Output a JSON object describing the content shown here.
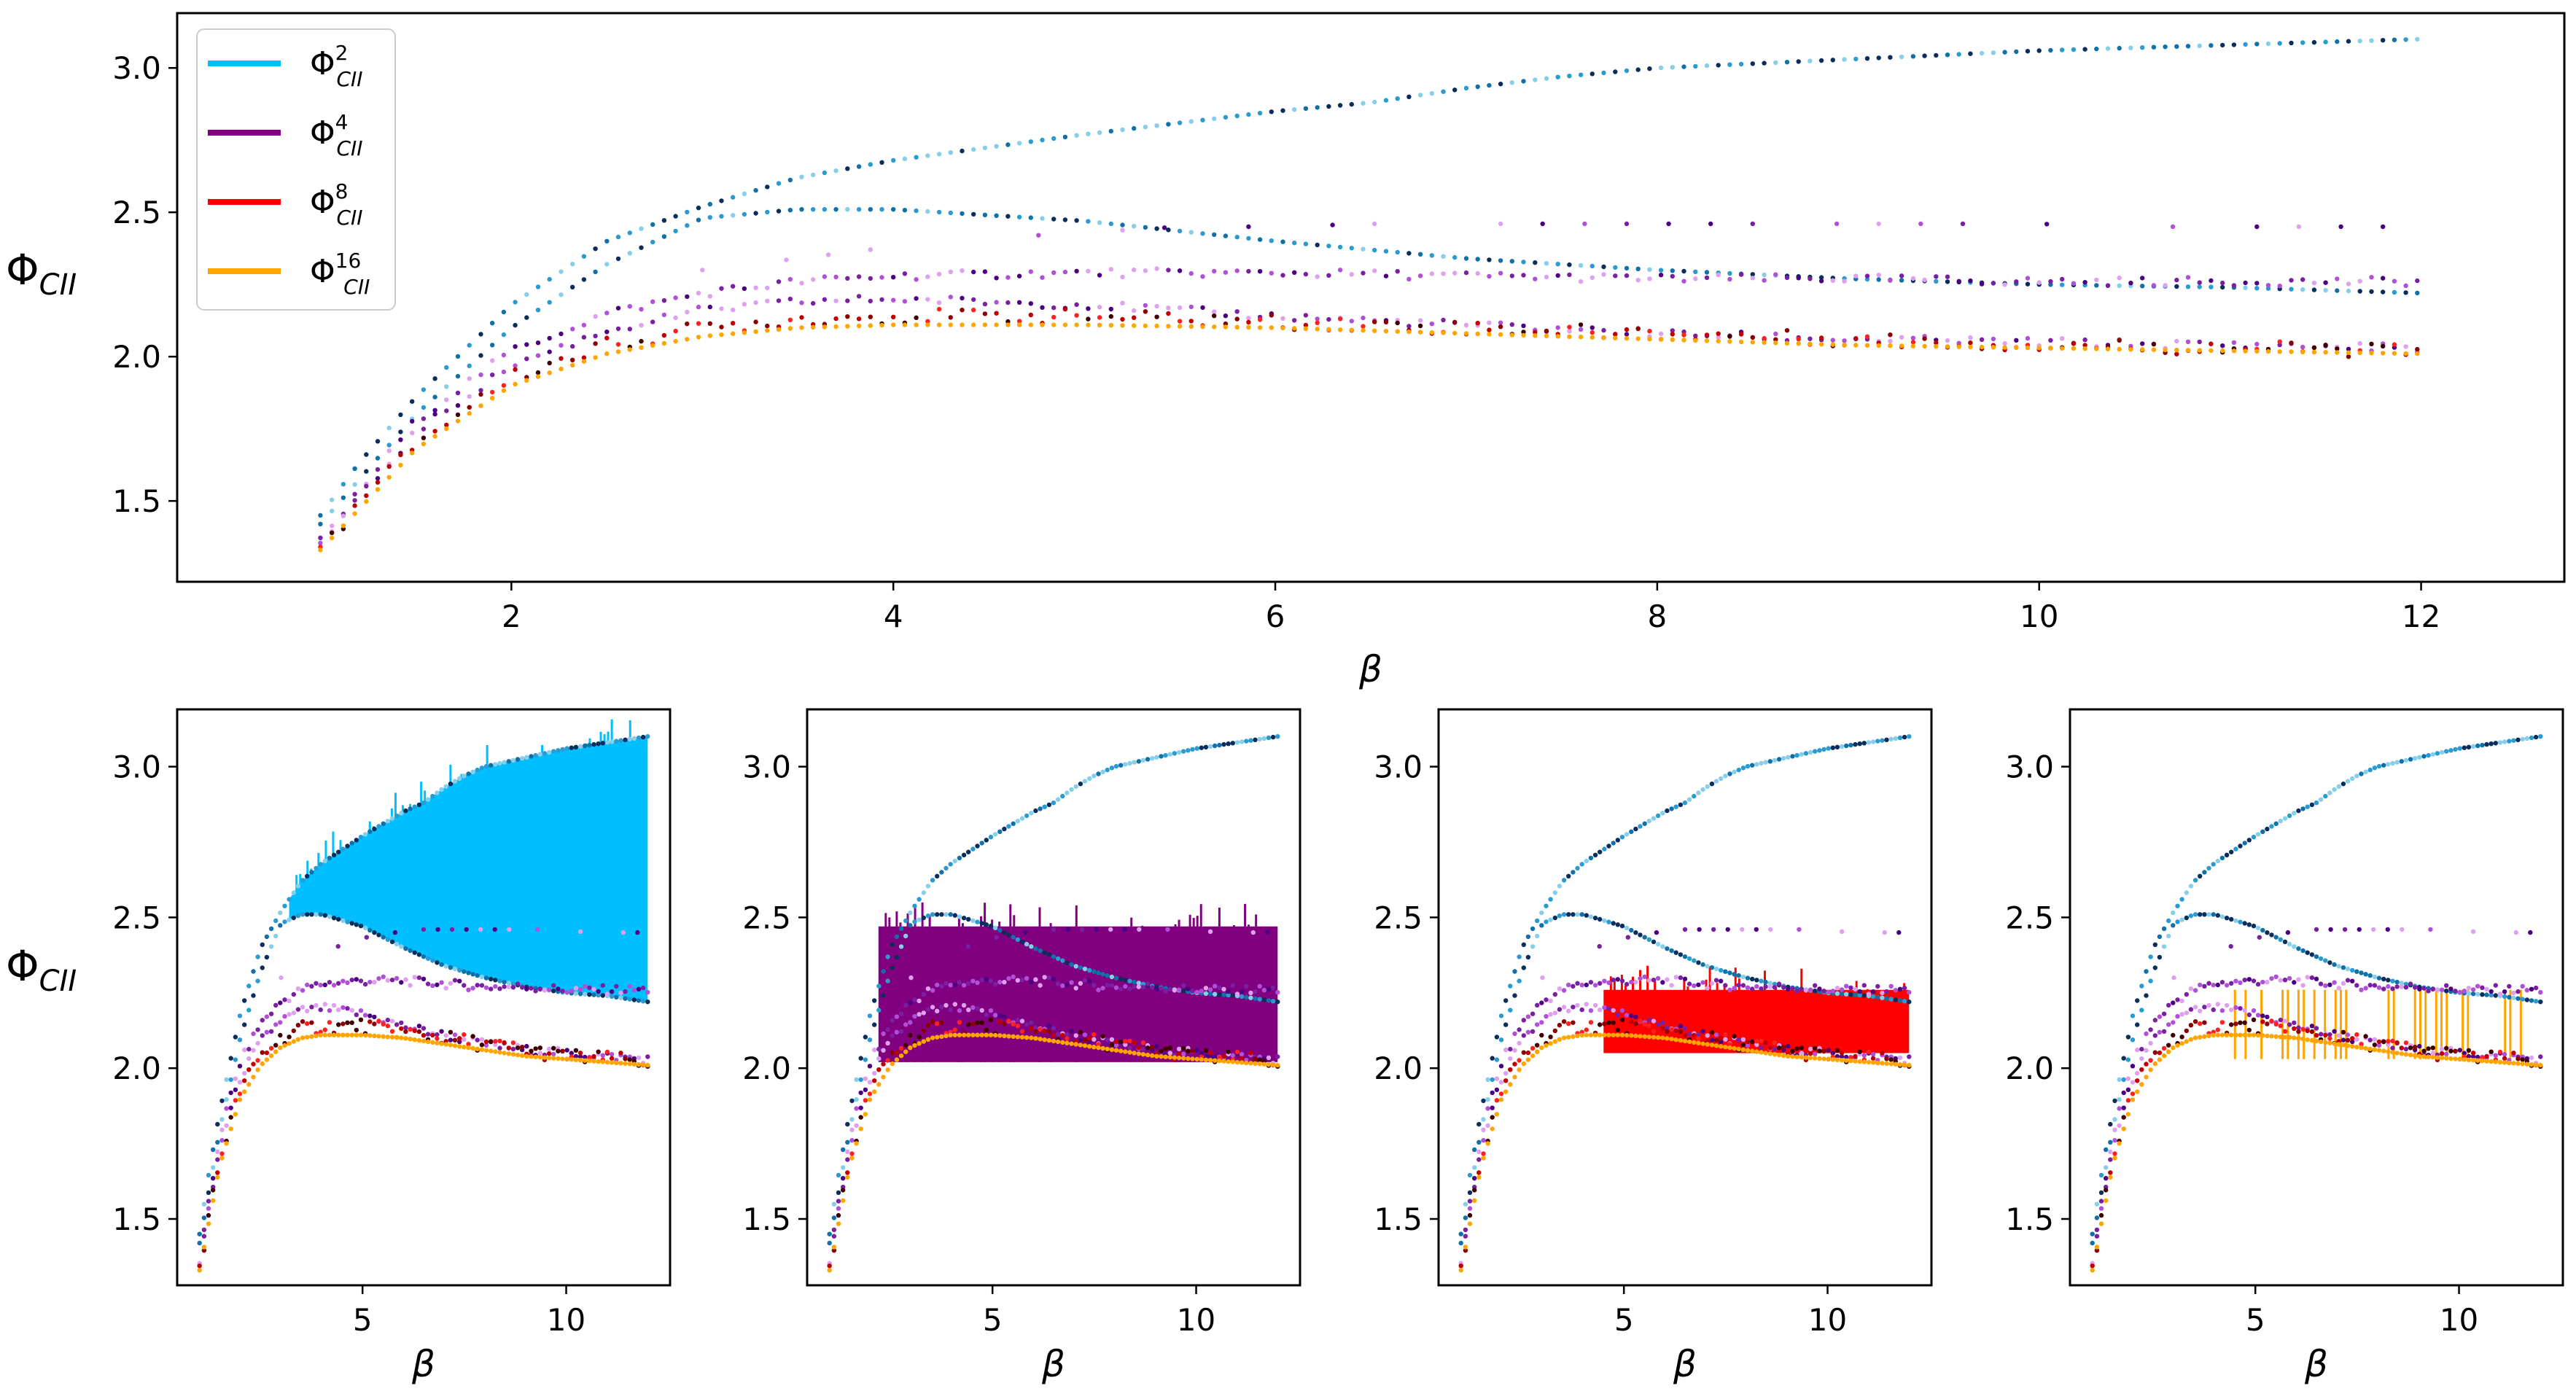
{
  "colors": {
    "phi2": "#00bfff",
    "phi4": "#800080",
    "phi8": "#ff0000",
    "phi16": "#ffa500",
    "phi2_shades": [
      "#87ceeb",
      "#2a9bd0",
      "#1070a8",
      "#0a2e5c"
    ],
    "phi4_shades": [
      "#4b0082",
      "#7a1fa2",
      "#b04fd8",
      "#e0a0f0"
    ],
    "phi8_shades": [
      "#8b0000",
      "#c00000",
      "#ff2020",
      "#400000"
    ]
  },
  "chart_data": [
    {
      "type": "scatter",
      "panel": "top",
      "xlabel": "β",
      "ylabel": "Φ",
      "ylabel_sub": "CII",
      "xlim": [
        0.25,
        12.75
      ],
      "ylim": [
        1.22,
        3.19
      ],
      "xticks": [
        2,
        4,
        6,
        8,
        10,
        12
      ],
      "yticks": [
        1.5,
        2.0,
        2.5,
        3.0
      ],
      "xtick_labels": [
        "2",
        "4",
        "6",
        "8",
        "10",
        "12"
      ],
      "ytick_labels": [
        "1.5",
        "2.0",
        "2.5",
        "3.0"
      ],
      "legend_position": "upper-left",
      "legend": [
        {
          "series": "phi2",
          "base": "Φ",
          "sup": "2",
          "sub": "CII"
        },
        {
          "series": "phi4",
          "base": "Φ",
          "sup": "4",
          "sub": "CII"
        },
        {
          "series": "phi8",
          "base": "Φ",
          "sup": "8",
          "sub": "CII"
        },
        {
          "series": "phi16",
          "base": "Φ",
          "sup": "16",
          "sub": "CII"
        }
      ],
      "series": [
        {
          "name": "Φ2 upper branch",
          "color_key": "phi2",
          "x": [
            1.0,
            1.2,
            1.5,
            2.0,
            2.5,
            3.0,
            3.5,
            4.0,
            5.0,
            6.0,
            6.5,
            7.0,
            7.5,
            8.0,
            9.0,
            10.0,
            11.0,
            12.0
          ],
          "y": [
            1.45,
            1.63,
            1.86,
            2.18,
            2.4,
            2.52,
            2.62,
            2.68,
            2.77,
            2.85,
            2.88,
            2.93,
            2.97,
            3.0,
            3.03,
            3.06,
            3.08,
            3.1
          ]
        },
        {
          "name": "Φ2 lower branch",
          "color_key": "phi2",
          "x": [
            1.0,
            1.5,
            2.0,
            2.5,
            3.0,
            3.5,
            4.0,
            5.0,
            6.0,
            7.0,
            8.0,
            9.0,
            10.0,
            11.0,
            12.0
          ],
          "y": [
            1.42,
            1.8,
            2.1,
            2.32,
            2.48,
            2.51,
            2.51,
            2.47,
            2.4,
            2.34,
            2.3,
            2.27,
            2.25,
            2.24,
            2.22
          ]
        },
        {
          "name": "Φ4 upper band",
          "color_key": "phi4",
          "x": [
            1.0,
            1.5,
            2.0,
            2.5,
            3.0,
            3.5,
            4.0,
            5.0,
            6.0,
            7.0,
            8.0,
            9.0,
            10.0,
            11.0,
            12.0
          ],
          "y": [
            1.36,
            1.78,
            2.02,
            2.15,
            2.22,
            2.26,
            2.28,
            2.29,
            2.29,
            2.28,
            2.27,
            2.27,
            2.26,
            2.26,
            2.26
          ]
        },
        {
          "name": "Φ4 lower band",
          "color_key": "phi4",
          "x": [
            1.0,
            1.5,
            2.0,
            2.5,
            3.0,
            3.5,
            4.0,
            5.0,
            6.0,
            7.0,
            8.0,
            9.0,
            10.0,
            11.0,
            12.0
          ],
          "y": [
            1.35,
            1.74,
            1.97,
            2.09,
            2.16,
            2.19,
            2.2,
            2.18,
            2.14,
            2.11,
            2.08,
            2.06,
            2.05,
            2.04,
            2.03
          ]
        },
        {
          "name": "Φ8",
          "color_key": "phi8",
          "x": [
            1.0,
            1.5,
            2.0,
            2.5,
            3.0,
            3.5,
            4.0,
            5.0,
            6.0,
            7.0,
            8.0,
            9.0,
            10.0,
            11.0,
            12.0
          ],
          "y": [
            1.34,
            1.7,
            1.93,
            2.04,
            2.1,
            2.13,
            2.14,
            2.14,
            2.12,
            2.1,
            2.08,
            2.06,
            2.04,
            2.03,
            2.02
          ]
        },
        {
          "name": "Φ16",
          "color_key": "phi16",
          "x": [
            1.0,
            1.5,
            2.0,
            2.5,
            3.0,
            3.5,
            4.0,
            5.0,
            6.0,
            7.0,
            8.0,
            9.0,
            10.0,
            11.0,
            12.0
          ],
          "y": [
            1.33,
            1.68,
            1.9,
            2.01,
            2.07,
            2.1,
            2.11,
            2.11,
            2.1,
            2.08,
            2.06,
            2.04,
            2.03,
            2.02,
            2.01
          ]
        },
        {
          "name": "Φ4 scattered upper levels",
          "color_key": "phi4",
          "x": [
            3.0,
            3.5,
            4.0,
            4.5,
            5.0,
            5.5,
            6.0,
            6.5,
            7.0,
            7.5,
            8.0,
            8.5,
            9.0,
            9.5,
            10.0,
            10.5,
            11.0,
            11.5,
            12.0
          ],
          "y": [
            2.3,
            2.34,
            2.38,
            2.41,
            2.43,
            2.45,
            2.45,
            2.46,
            2.46,
            2.46,
            2.46,
            2.46,
            2.46,
            2.46,
            2.46,
            2.45,
            2.45,
            2.45,
            2.45
          ]
        }
      ]
    },
    {
      "type": "scatter",
      "panel": "bottom-1",
      "highlight": "phi2",
      "fill_between": {
        "x": [
          3.2,
          12.0
        ],
        "lower": "Φ2 lower branch",
        "upper": "Φ2 upper branch"
      },
      "xlabel": "β",
      "ylabel": "Φ",
      "ylabel_sub": "CII",
      "xticks": [
        5,
        10
      ],
      "xtick_labels": [
        "5",
        "10"
      ],
      "yticks": [
        1.5,
        2.0,
        2.5,
        3.0
      ],
      "ytick_labels": [
        "1.5",
        "2.0",
        "2.5",
        "3.0"
      ],
      "xlim": [
        0.45,
        12.55
      ],
      "ylim": [
        1.28,
        3.19
      ]
    },
    {
      "type": "scatter",
      "panel": "bottom-2",
      "highlight": "phi4",
      "fill_between": {
        "x": [
          2.2,
          12.0
        ],
        "lower": 2.02,
        "upper": 2.47
      },
      "xlabel": "β",
      "xticks": [
        5,
        10
      ],
      "xtick_labels": [
        "5",
        "10"
      ],
      "yticks": [
        1.5,
        2.0,
        2.5,
        3.0
      ],
      "ytick_labels": [
        "1.5",
        "2.0",
        "2.5",
        "3.0"
      ],
      "xlim": [
        0.45,
        12.55
      ],
      "ylim": [
        1.28,
        3.19
      ]
    },
    {
      "type": "scatter",
      "panel": "bottom-3",
      "highlight": "phi8",
      "fill_between": {
        "x": [
          4.5,
          12.0
        ],
        "lower": 2.05,
        "upper": 2.26
      },
      "xlabel": "β",
      "xticks": [
        5,
        10
      ],
      "xtick_labels": [
        "5",
        "10"
      ],
      "yticks": [
        1.5,
        2.0,
        2.5,
        3.0
      ],
      "ytick_labels": [
        "1.5",
        "2.0",
        "2.5",
        "3.0"
      ],
      "xlim": [
        0.45,
        12.55
      ],
      "ylim": [
        1.28,
        3.19
      ]
    },
    {
      "type": "scatter",
      "panel": "bottom-4",
      "highlight": "phi16",
      "fill_between": {
        "x": [
          4.5,
          12.0
        ],
        "lower": 2.03,
        "upper": 2.26,
        "style": "sparse-vertical-lines"
      },
      "xlabel": "β",
      "xticks": [
        5,
        10
      ],
      "xtick_labels": [
        "5",
        "10"
      ],
      "yticks": [
        1.5,
        2.0,
        2.5,
        3.0
      ],
      "ytick_labels": [
        "1.5",
        "2.0",
        "2.5",
        "3.0"
      ],
      "xlim": [
        0.45,
        12.55
      ],
      "ylim": [
        1.28,
        3.19
      ]
    }
  ]
}
